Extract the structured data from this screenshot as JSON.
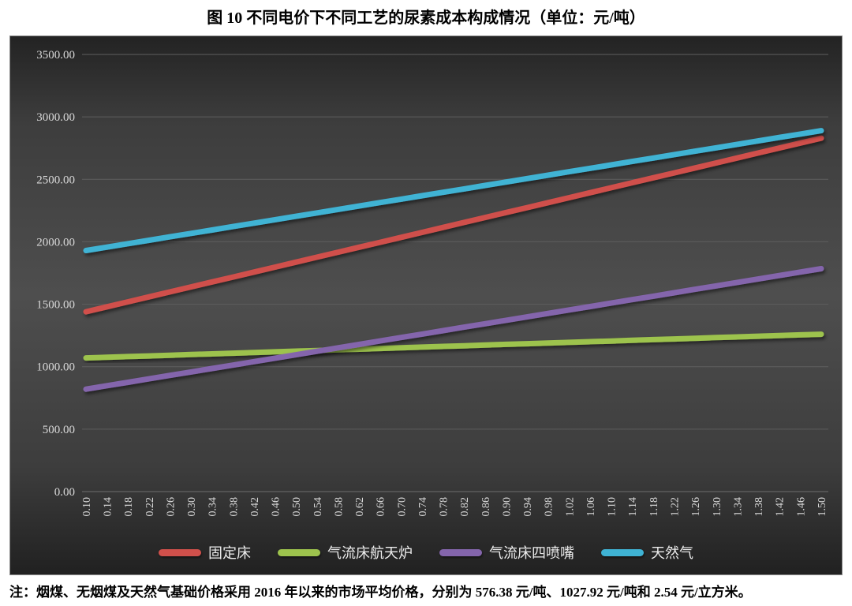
{
  "title": "图 10 不同电价下不同工艺的尿素成本构成情况（单位：元/吨）",
  "note": "注：烟煤、无烟煤及天然气基础价格采用 2016 年以来的市场平均价格，分别为 576.38 元/吨、1027.92 元/吨和 2.54 元/立方米。",
  "chart_data": {
    "type": "line",
    "title": "图 10 不同电价下不同工艺的尿素成本构成情况（单位：元/吨）",
    "xlabel": "",
    "ylabel": "",
    "ylim": [
      0,
      3500
    ],
    "ytick_step": 500,
    "grid": true,
    "legend_position": "bottom",
    "background_theme": "dark",
    "style": {
      "plot_bg_center": "#4e4e4e",
      "plot_bg_edge": "#232323",
      "gridline_color": "#5e5e5e",
      "axis_line_color": "#6e6e6e",
      "tick_label_color": "#d9d9d9",
      "legend_text_color": "#ededed",
      "border_color": "#8a8a8a"
    },
    "x": [
      0.1,
      0.14,
      0.18,
      0.22,
      0.26,
      0.3,
      0.34,
      0.38,
      0.42,
      0.46,
      0.5,
      0.54,
      0.58,
      0.62,
      0.66,
      0.7,
      0.74,
      0.78,
      0.82,
      0.86,
      0.9,
      0.94,
      0.98,
      1.02,
      1.06,
      1.1,
      1.14,
      1.18,
      1.22,
      1.26,
      1.3,
      1.34,
      1.38,
      1.42,
      1.46,
      1.5
    ],
    "series": [
      {
        "name": "固定床",
        "color": "#d0504b",
        "values": [
          1440.0,
          1479.7,
          1519.4,
          1559.1,
          1598.9,
          1638.6,
          1678.3,
          1718.0,
          1757.7,
          1797.4,
          1837.1,
          1876.9,
          1916.6,
          1956.3,
          1996.0,
          2035.7,
          2075.4,
          2115.1,
          2154.9,
          2194.6,
          2234.3,
          2274.0,
          2313.7,
          2353.4,
          2393.1,
          2432.9,
          2472.6,
          2512.3,
          2552.0,
          2591.7,
          2631.4,
          2671.1,
          2710.9,
          2750.6,
          2790.3,
          2830.0
        ]
      },
      {
        "name": "气流床航天炉",
        "color": "#9dc34d",
        "values": [
          1070.0,
          1075.4,
          1080.9,
          1086.3,
          1091.7,
          1097.1,
          1102.6,
          1108.0,
          1113.4,
          1118.9,
          1124.3,
          1129.7,
          1135.1,
          1140.6,
          1146.0,
          1151.4,
          1156.9,
          1162.3,
          1167.7,
          1173.1,
          1178.6,
          1184.0,
          1189.4,
          1194.9,
          1200.3,
          1205.7,
          1211.1,
          1216.6,
          1222.0,
          1227.4,
          1232.9,
          1238.3,
          1243.7,
          1249.1,
          1254.6,
          1260.0
        ]
      },
      {
        "name": "气流床四喷嘴",
        "color": "#8465ac",
        "values": [
          820.0,
          847.6,
          875.1,
          902.7,
          930.3,
          957.9,
          985.4,
          1013.0,
          1040.6,
          1068.1,
          1095.7,
          1123.3,
          1150.9,
          1178.4,
          1206.0,
          1233.6,
          1261.1,
          1288.7,
          1316.3,
          1343.9,
          1371.4,
          1399.0,
          1426.6,
          1454.1,
          1481.7,
          1509.3,
          1536.9,
          1564.4,
          1592.0,
          1619.6,
          1647.1,
          1674.7,
          1702.3,
          1729.9,
          1757.4,
          1785.0
        ]
      },
      {
        "name": "天然气",
        "color": "#3fb3d4",
        "values": [
          1930.0,
          1957.4,
          1984.9,
          2012.3,
          2039.7,
          2067.1,
          2094.6,
          2122.0,
          2149.4,
          2176.9,
          2204.3,
          2231.7,
          2259.1,
          2286.6,
          2314.0,
          2341.4,
          2368.9,
          2396.3,
          2423.7,
          2451.1,
          2478.6,
          2506.0,
          2533.4,
          2560.9,
          2588.3,
          2615.7,
          2643.1,
          2670.6,
          2698.0,
          2725.4,
          2752.9,
          2780.3,
          2807.7,
          2835.1,
          2862.6,
          2890.0
        ]
      }
    ]
  }
}
